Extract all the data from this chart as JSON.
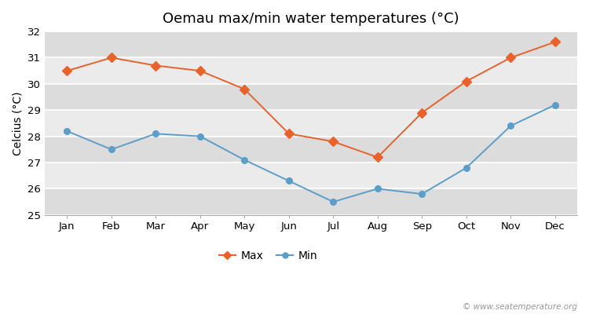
{
  "title": "Oemau max/min water temperatures (°C)",
  "ylabel": "Celcius (°C)",
  "months": [
    "Jan",
    "Feb",
    "Mar",
    "Apr",
    "May",
    "Jun",
    "Jul",
    "Aug",
    "Sep",
    "Oct",
    "Nov",
    "Dec"
  ],
  "max_values": [
    30.5,
    31.0,
    30.7,
    30.5,
    29.8,
    28.1,
    27.8,
    27.2,
    28.9,
    30.1,
    31.0,
    31.6
  ],
  "min_values": [
    28.2,
    27.5,
    28.1,
    28.0,
    27.1,
    26.3,
    25.5,
    26.0,
    25.8,
    26.8,
    28.4,
    29.2
  ],
  "max_color": "#E8622A",
  "min_color": "#5B9EC9",
  "ylim": [
    25,
    32
  ],
  "yticks": [
    25,
    26,
    27,
    28,
    29,
    30,
    31,
    32
  ],
  "band_colors": [
    "#DCDCDC",
    "#EBEBEB"
  ],
  "outer_bg": "#FFFFFF",
  "legend_max": "Max",
  "legend_min": "Min",
  "watermark": "© www.seatemperature.org",
  "title_fontsize": 13,
  "label_fontsize": 10,
  "tick_fontsize": 9.5
}
